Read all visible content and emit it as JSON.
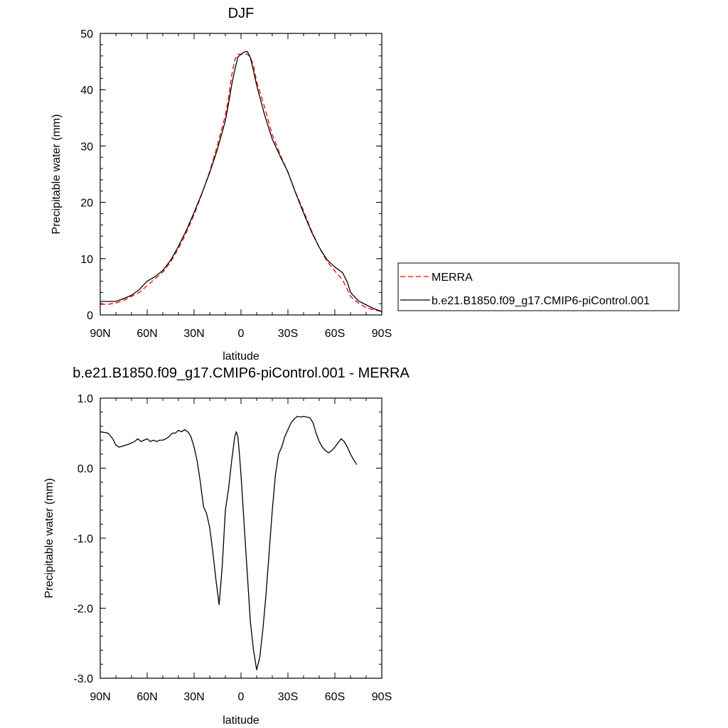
{
  "chart_data": [
    {
      "type": "line",
      "title": "DJF",
      "xlabel": "latitude",
      "ylabel": "Precipitable water (mm)",
      "xlim": [
        90,
        -90
      ],
      "ylim": [
        0,
        50
      ],
      "x_ticks": [
        {
          "value": 90,
          "label": "90N"
        },
        {
          "value": 60,
          "label": "60N"
        },
        {
          "value": 30,
          "label": "30N"
        },
        {
          "value": 0,
          "label": "0"
        },
        {
          "value": -30,
          "label": "30S"
        },
        {
          "value": -60,
          "label": "60S"
        },
        {
          "value": -90,
          "label": "90S"
        }
      ],
      "y_ticks": [
        {
          "value": 0,
          "label": "0"
        },
        {
          "value": 10,
          "label": "10"
        },
        {
          "value": 20,
          "label": "20"
        },
        {
          "value": 30,
          "label": "30"
        },
        {
          "value": 40,
          "label": "40"
        },
        {
          "value": 50,
          "label": "50"
        }
      ],
      "grid": false,
      "legend_position": "right",
      "series": [
        {
          "name": "MERRA",
          "color": "#ff0000",
          "dash": "dashed",
          "points": [
            [
              90,
              1.9
            ],
            [
              85,
              1.9
            ],
            [
              80,
              2.1
            ],
            [
              75,
              2.6
            ],
            [
              70,
              3.3
            ],
            [
              65,
              4.0
            ],
            [
              60,
              5.2
            ],
            [
              55,
              6.4
            ],
            [
              50,
              7.6
            ],
            [
              45,
              9.4
            ],
            [
              40,
              11.8
            ],
            [
              35,
              14.6
            ],
            [
              30,
              17.8
            ],
            [
              25,
              21.5
            ],
            [
              20,
              25.5
            ],
            [
              15,
              30.2
            ],
            [
              10,
              35.5
            ],
            [
              8,
              38.5
            ],
            [
              6,
              42.5
            ],
            [
              4,
              45.3
            ],
            [
              2,
              46.3
            ],
            [
              0,
              46.3
            ],
            [
              -2,
              46.4
            ],
            [
              -4,
              46.3
            ],
            [
              -6,
              45.8
            ],
            [
              -8,
              44.3
            ],
            [
              -10,
              41.5
            ],
            [
              -15,
              37.0
            ],
            [
              -20,
              32.0
            ],
            [
              -25,
              28.5
            ],
            [
              -30,
              25.3
            ],
            [
              -35,
              21.7
            ],
            [
              -40,
              18.5
            ],
            [
              -45,
              15.0
            ],
            [
              -50,
              12.0
            ],
            [
              -55,
              9.5
            ],
            [
              -60,
              7.8
            ],
            [
              -65,
              6.2
            ],
            [
              -68,
              4.5
            ],
            [
              -70,
              3.3
            ],
            [
              -75,
              2.1
            ],
            [
              -80,
              1.3
            ],
            [
              -85,
              0.9
            ],
            [
              -90,
              0.6
            ]
          ]
        },
        {
          "name": "b.e21.B1850.f09_g17.CMIP6-piControl.001",
          "color": "#000000",
          "dash": "solid",
          "points": [
            [
              90,
              2.4
            ],
            [
              85,
              2.4
            ],
            [
              80,
              2.4
            ],
            [
              75,
              2.9
            ],
            [
              70,
              3.5
            ],
            [
              65,
              4.5
            ],
            [
              60,
              6.0
            ],
            [
              55,
              6.8
            ],
            [
              50,
              7.9
            ],
            [
              45,
              9.7
            ],
            [
              40,
              12.2
            ],
            [
              35,
              15.0
            ],
            [
              30,
              18.2
            ],
            [
              25,
              21.6
            ],
            [
              20,
              25.3
            ],
            [
              15,
              29.5
            ],
            [
              10,
              34.5
            ],
            [
              8,
              37.5
            ],
            [
              6,
              40.8
            ],
            [
              4,
              43.5
            ],
            [
              2,
              45.8
            ],
            [
              0,
              46.3
            ],
            [
              -2,
              46.7
            ],
            [
              -4,
              46.8
            ],
            [
              -6,
              45.7
            ],
            [
              -8,
              43.3
            ],
            [
              -10,
              40.8
            ],
            [
              -15,
              35.6
            ],
            [
              -20,
              31.2
            ],
            [
              -25,
              28.2
            ],
            [
              -30,
              25.4
            ],
            [
              -35,
              21.6
            ],
            [
              -40,
              18.1
            ],
            [
              -45,
              14.8
            ],
            [
              -50,
              12.0
            ],
            [
              -55,
              9.8
            ],
            [
              -60,
              8.5
            ],
            [
              -65,
              7.5
            ],
            [
              -68,
              5.8
            ],
            [
              -70,
              4.0
            ],
            [
              -75,
              2.5
            ],
            [
              -80,
              1.8
            ],
            [
              -85,
              1.1
            ],
            [
              -90,
              0.6
            ]
          ]
        }
      ]
    },
    {
      "type": "line",
      "title": "b.e21.B1850.f09_g17.CMIP6-piControl.001 - MERRA",
      "xlabel": "latitude",
      "ylabel": "Precipitable water (mm)",
      "xlim": [
        90,
        -90
      ],
      "ylim": [
        -3.0,
        1.0
      ],
      "x_ticks": [
        {
          "value": 90,
          "label": "90N"
        },
        {
          "value": 60,
          "label": "60N"
        },
        {
          "value": 30,
          "label": "30N"
        },
        {
          "value": 0,
          "label": "0"
        },
        {
          "value": -30,
          "label": "30S"
        },
        {
          "value": -60,
          "label": "60S"
        },
        {
          "value": -90,
          "label": "90S"
        }
      ],
      "y_ticks": [
        {
          "value": -3.0,
          "label": "-3.0"
        },
        {
          "value": -2.0,
          "label": "-2.0"
        },
        {
          "value": -1.0,
          "label": "-1.0"
        },
        {
          "value": 0.0,
          "label": "0.0"
        },
        {
          "value": 1.0,
          "label": "1.0"
        }
      ],
      "grid": false,
      "series": [
        {
          "color": "#000000",
          "dash": "solid",
          "points": [
            [
              90,
              0.52
            ],
            [
              85,
              0.5
            ],
            [
              82,
              0.42
            ],
            [
              80,
              0.33
            ],
            [
              78,
              0.3
            ],
            [
              75,
              0.32
            ],
            [
              72,
              0.34
            ],
            [
              70,
              0.36
            ],
            [
              68,
              0.38
            ],
            [
              66,
              0.42
            ],
            [
              64,
              0.38
            ],
            [
              62,
              0.4
            ],
            [
              60,
              0.42
            ],
            [
              58,
              0.38
            ],
            [
              56,
              0.4
            ],
            [
              54,
              0.38
            ],
            [
              52,
              0.4
            ],
            [
              50,
              0.4
            ],
            [
              48,
              0.42
            ],
            [
              46,
              0.45
            ],
            [
              44,
              0.5
            ],
            [
              42,
              0.5
            ],
            [
              40,
              0.54
            ],
            [
              38,
              0.52
            ],
            [
              36,
              0.55
            ],
            [
              34,
              0.52
            ],
            [
              32,
              0.45
            ],
            [
              30,
              0.3
            ],
            [
              28,
              0.1
            ],
            [
              26,
              -0.2
            ],
            [
              24,
              -0.55
            ],
            [
              22,
              -0.65
            ],
            [
              20,
              -0.85
            ],
            [
              18,
              -1.2
            ],
            [
              16,
              -1.6
            ],
            [
              14,
              -1.95
            ],
            [
              12,
              -1.4
            ],
            [
              10,
              -0.6
            ],
            [
              8,
              -0.3
            ],
            [
              6,
              0.1
            ],
            [
              4,
              0.45
            ],
            [
              3,
              0.52
            ],
            [
              2,
              0.45
            ],
            [
              1,
              0.2
            ],
            [
              0,
              -0.1
            ],
            [
              -2,
              -0.8
            ],
            [
              -4,
              -1.5
            ],
            [
              -6,
              -2.2
            ],
            [
              -8,
              -2.6
            ],
            [
              -10,
              -2.88
            ],
            [
              -12,
              -2.7
            ],
            [
              -14,
              -2.3
            ],
            [
              -16,
              -1.8
            ],
            [
              -18,
              -1.2
            ],
            [
              -20,
              -0.6
            ],
            [
              -22,
              -0.1
            ],
            [
              -24,
              0.2
            ],
            [
              -26,
              0.3
            ],
            [
              -28,
              0.45
            ],
            [
              -30,
              0.55
            ],
            [
              -32,
              0.65
            ],
            [
              -34,
              0.7
            ],
            [
              -36,
              0.74
            ],
            [
              -38,
              0.73
            ],
            [
              -40,
              0.74
            ],
            [
              -42,
              0.73
            ],
            [
              -44,
              0.72
            ],
            [
              -46,
              0.65
            ],
            [
              -48,
              0.5
            ],
            [
              -50,
              0.38
            ],
            [
              -52,
              0.3
            ],
            [
              -54,
              0.25
            ],
            [
              -56,
              0.22
            ],
            [
              -58,
              0.25
            ],
            [
              -60,
              0.3
            ],
            [
              -62,
              0.36
            ],
            [
              -64,
              0.42
            ],
            [
              -66,
              0.38
            ],
            [
              -68,
              0.3
            ],
            [
              -70,
              0.2
            ],
            [
              -72,
              0.12
            ],
            [
              -74,
              0.05
            ]
          ]
        }
      ]
    }
  ]
}
